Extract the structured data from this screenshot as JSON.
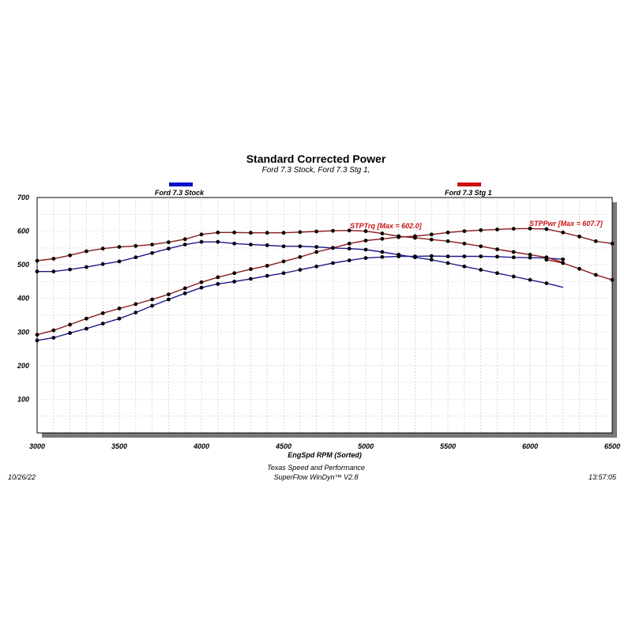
{
  "chart": {
    "title": "Standard Corrected Power",
    "subtitle": "Ford 7.3 Stock, Ford 7.3 Stg 1,",
    "xlabel": "EngSpd  RPM   (Sorted)"
  },
  "legend": [
    {
      "label": "Ford 7.3 Stock",
      "color": "#0a10c8"
    },
    {
      "label": "Ford 7.3 Stg 1",
      "color": "#cc1111"
    }
  ],
  "annotations": {
    "trq": "STPTrq [Max = 602.0]",
    "pwr": "STPPwr [Max = 607.7]"
  },
  "footer": {
    "date": "10/26/22",
    "time": "13:57:05",
    "company": "Texas Speed and Performance",
    "software": "SuperFlow WinDyn™  V2.8"
  },
  "chart_data": {
    "type": "line",
    "title": "Standard Corrected Power",
    "subtitle": "Ford 7.3 Stock, Ford 7.3 Stg 1,",
    "xlabel": "EngSpd  RPM   (Sorted)",
    "ylabel": "",
    "xlim": [
      3000,
      6500
    ],
    "ylim": [
      0,
      700
    ],
    "xticks": [
      3000,
      3500,
      4000,
      4500,
      5000,
      5500,
      6000,
      6500
    ],
    "yticks": [
      100,
      200,
      300,
      400,
      500,
      600,
      700
    ],
    "grid": true,
    "legend_position": "top",
    "series": [
      {
        "name": "Ford 7.3 Stock",
        "measure": "Torque",
        "color": "#1a1a8c",
        "x": [
          3000,
          3100,
          3200,
          3300,
          3400,
          3500,
          3600,
          3700,
          3800,
          3900,
          4000,
          4100,
          4200,
          4300,
          4400,
          4500,
          4600,
          4700,
          4800,
          4900,
          5000,
          5100,
          5200,
          5300,
          5400,
          5500,
          5600,
          5700,
          5800,
          5900,
          6000,
          6100,
          6200
        ],
        "y": [
          480,
          480,
          486,
          493,
          502,
          510,
          522,
          535,
          548,
          560,
          568,
          568,
          563,
          560,
          558,
          555,
          555,
          553,
          550,
          548,
          545,
          538,
          530,
          522,
          515,
          505,
          495,
          485,
          475,
          465,
          455,
          445,
          433
        ]
      },
      {
        "name": "Ford 7.3 Stock",
        "measure": "Power",
        "color": "#1a1a8c",
        "x": [
          3000,
          3100,
          3200,
          3300,
          3400,
          3500,
          3600,
          3700,
          3800,
          3900,
          4000,
          4100,
          4200,
          4300,
          4400,
          4500,
          4600,
          4700,
          4800,
          4900,
          5000,
          5100,
          5200,
          5300,
          5400,
          5500,
          5600,
          5700,
          5800,
          5900,
          6000,
          6100,
          6200
        ],
        "y": [
          275,
          283,
          297,
          310,
          325,
          340,
          358,
          378,
          397,
          415,
          432,
          443,
          450,
          458,
          467,
          475,
          485,
          495,
          505,
          513,
          520,
          523,
          525,
          525,
          526,
          525,
          525,
          525,
          524,
          522,
          521,
          520,
          516
        ]
      },
      {
        "name": "Ford 7.3 Stg 1",
        "measure": "Torque",
        "color": "#8a1a1a",
        "x": [
          3000,
          3100,
          3200,
          3300,
          3400,
          3500,
          3600,
          3700,
          3800,
          3900,
          4000,
          4100,
          4200,
          4300,
          4400,
          4500,
          4600,
          4700,
          4800,
          4900,
          5000,
          5100,
          5200,
          5300,
          5400,
          5500,
          5600,
          5700,
          5800,
          5900,
          6000,
          6100,
          6200
        ],
        "y": [
          512,
          518,
          528,
          540,
          548,
          553,
          556,
          560,
          567,
          576,
          590,
          596,
          596,
          595,
          595,
          595,
          597,
          599,
          601,
          602,
          600,
          593,
          585,
          580,
          575,
          570,
          563,
          555,
          546,
          538,
          530,
          522,
          507
        ]
      },
      {
        "name": "Ford 7.3 Stg 1",
        "measure": "Power",
        "color": "#8a1a1a",
        "x": [
          3000,
          3100,
          3200,
          3300,
          3400,
          3500,
          3600,
          3700,
          3800,
          3900,
          4000,
          4100,
          4200,
          4300,
          4400,
          4500,
          4600,
          4700,
          4800,
          4900,
          5000,
          5100,
          5200,
          5300,
          5400,
          5500,
          5600,
          5700,
          5800,
          5900,
          6000,
          6100,
          6200,
          6300,
          6400,
          6500
        ],
        "y": [
          292,
          305,
          322,
          340,
          356,
          370,
          383,
          397,
          412,
          430,
          448,
          463,
          475,
          487,
          497,
          510,
          523,
          538,
          550,
          563,
          572,
          577,
          582,
          585,
          590,
          596,
          600,
          603,
          605,
          607,
          607.7,
          606,
          596,
          584,
          570,
          563
        ]
      },
      {
        "name": "Ford 7.3 Stg 1",
        "measure": "Power tail",
        "color": "#8a1a1a",
        "x": [
          6100,
          6200,
          6300,
          6400,
          6500
        ],
        "y": [
          515,
          505,
          488,
          470,
          455
        ]
      }
    ]
  }
}
